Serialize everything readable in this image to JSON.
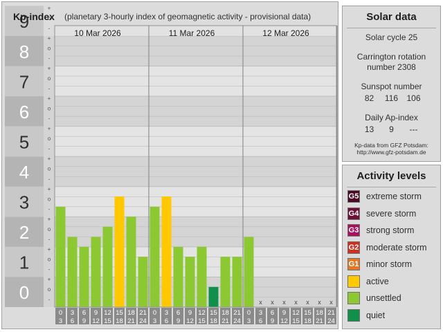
{
  "header": {
    "title": "Kp-index",
    "subtitle": "(planetary 3-hourly index of geomagnetic activity - provisional data)"
  },
  "solar": {
    "title": "Solar data",
    "cycle": "Solar cycle 25",
    "carrington_line1": "Carrington rotation",
    "carrington_line2": "number 2308",
    "sunspot_title": "Sunspot number",
    "sunspot_values": [
      "82",
      "116",
      "106"
    ],
    "ap_title": "Daily Ap-index",
    "ap_values": [
      "13",
      "9",
      "---"
    ],
    "source_line1": "Kp-data from GFZ Potsdam:",
    "source_line2": "http://www.gfz-potsdam.de"
  },
  "activity": {
    "title": "Activity levels",
    "levels": [
      {
        "code": "G5",
        "label": "extreme storm",
        "color": "#4a0a24"
      },
      {
        "code": "G4",
        "label": "severe storm",
        "color": "#6e0f3a"
      },
      {
        "code": "G3",
        "label": "strong storm",
        "color": "#a8105c"
      },
      {
        "code": "G2",
        "label": "moderate storm",
        "color": "#cc3020"
      },
      {
        "code": "G1",
        "label": "minor storm",
        "color": "#e07828"
      },
      {
        "code": "",
        "label": "active",
        "color": "#ffc800"
      },
      {
        "code": "",
        "label": "unsettled",
        "color": "#8cc832"
      },
      {
        "code": "",
        "label": "quiet",
        "color": "#10904a"
      }
    ]
  },
  "chart_data": {
    "type": "bar",
    "ylim": [
      0,
      9
    ],
    "y_ticks": [
      "0",
      "1",
      "2",
      "3",
      "4",
      "5",
      "6",
      "7",
      "8",
      "9"
    ],
    "minor_marks": [
      "+",
      "o",
      "-"
    ],
    "days": [
      "10 Mar 2026",
      "11 Mar 2026",
      "12 Mar 2026"
    ],
    "interval_starts": [
      "0",
      "3",
      "6",
      "9",
      "12",
      "15",
      "18",
      "21"
    ],
    "interval_ends": [
      "3",
      "6",
      "9",
      "12",
      "15",
      "18",
      "21",
      "24"
    ],
    "missing_mark": "x",
    "values": [
      [
        3.33,
        2.33,
        2.0,
        2.33,
        2.67,
        3.67,
        3.0,
        1.67
      ],
      [
        3.33,
        3.67,
        2.0,
        1.67,
        2.0,
        0.67,
        1.67,
        1.67
      ],
      [
        2.33,
        null,
        null,
        null,
        null,
        null,
        null,
        null
      ]
    ],
    "colors": [
      [
        "#8cc832",
        "#8cc832",
        "#8cc832",
        "#8cc832",
        "#8cc832",
        "#ffc800",
        "#8cc832",
        "#8cc832"
      ],
      [
        "#8cc832",
        "#ffc800",
        "#8cc832",
        "#8cc832",
        "#8cc832",
        "#10904a",
        "#8cc832",
        "#8cc832"
      ],
      [
        "#8cc832",
        null,
        null,
        null,
        null,
        null,
        null,
        null
      ]
    ]
  }
}
